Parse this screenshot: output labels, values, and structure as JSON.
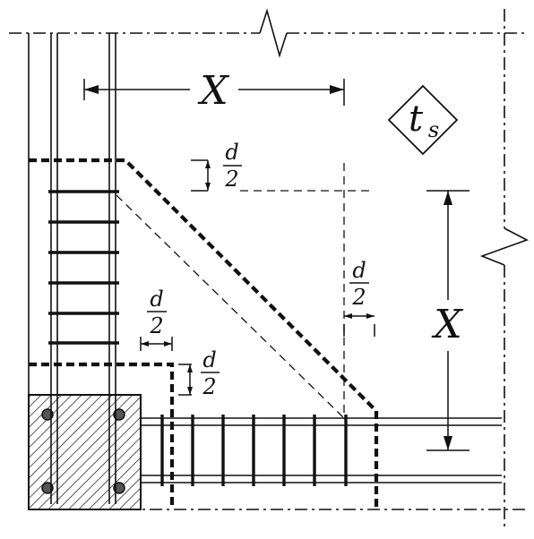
{
  "labels": {
    "x_top": "X",
    "x_right": "X",
    "ts": "t",
    "ts_sub": "s",
    "d_num": "d",
    "d_den": "2"
  },
  "colors": {
    "ink": "#111111",
    "paper": "#ffffff"
  }
}
